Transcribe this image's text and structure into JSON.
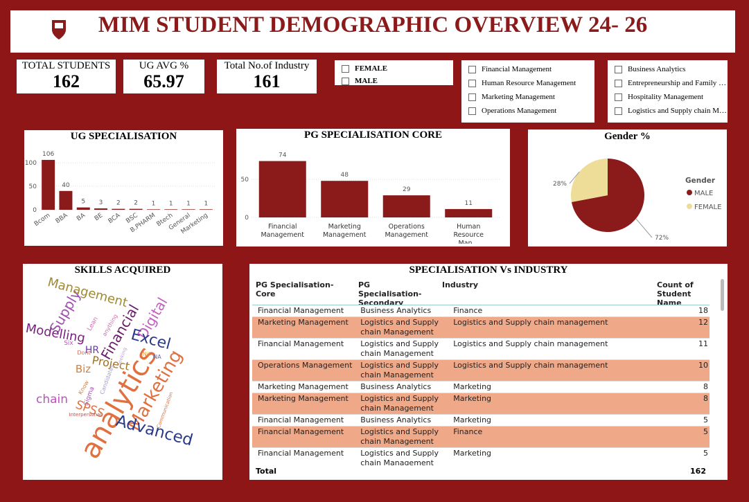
{
  "header": {
    "title": "MIM STUDENT DEMOGRAPHIC OVERVIEW 24- 26"
  },
  "cards": [
    {
      "label": "TOTAL STUDENTS",
      "value": 162
    },
    {
      "label": "UG AVG %",
      "value": 65.97
    },
    {
      "label": "Total No.of Industry",
      "value": 161
    }
  ],
  "slicers": [
    [
      "FEMALE",
      "MALE"
    ],
    [
      "Financial Management",
      "Human Resource Management",
      "Marketing Management",
      "Operations Management"
    ],
    [
      "Business Analytics",
      "Entrepreneurship and Family Bus…",
      "Hospitality Management",
      "Logistics and Supply chain Mana…"
    ]
  ],
  "chart_data": [
    {
      "type": "bar",
      "title": "UG SPECIALISATION",
      "categories": [
        "Bcom",
        "BBA",
        "BA",
        "BE",
        "BCA",
        "BSC",
        "B.PHARM",
        "Btech",
        "General",
        "Marketing"
      ],
      "values": [
        106,
        40,
        5,
        3,
        2,
        2,
        1,
        1,
        1,
        1
      ],
      "color": "#8b1a1a",
      "ylim": [
        0,
        125
      ],
      "yticks": [
        0,
        50,
        100
      ],
      "rotate_labels": true
    },
    {
      "type": "bar",
      "title": "PG SPECIALISATION CORE",
      "categories": [
        "Financial Management",
        "Marketing Management",
        "Operations Management",
        "Human Resource Man…"
      ],
      "values": [
        74,
        48,
        29,
        11
      ],
      "color": "#8b1a1a",
      "ylim": [
        0,
        80
      ],
      "yticks": [
        0,
        50
      ],
      "rotate_labels": false
    },
    {
      "type": "pie",
      "title": "Gender %",
      "legend_title": "Gender",
      "categories": [
        "MALE",
        "FEMALE"
      ],
      "values": [
        72,
        28
      ],
      "value_labels": [
        "72%",
        "28%"
      ],
      "colors": [
        "#8b1a1a",
        "#eedd99"
      ]
    }
  ],
  "wordcloud": {
    "title": "SKILLS ACQUIRED",
    "words": [
      "Supply",
      "Management",
      "Digital",
      "Modelling",
      "Financial",
      "Excel",
      "HR",
      "Project",
      "Biz",
      "Marketing",
      "analytics",
      "chain",
      "SPSS",
      "Advanced",
      "Lean",
      "anything",
      "Six",
      "Dont",
      "Nil",
      "NA",
      "Sigma",
      "Know",
      "Candidates",
      "Communication",
      "Interpersonal",
      "Seeking"
    ]
  },
  "table": {
    "title": "SPECIALISATION Vs INDUSTRY",
    "columns": [
      "PG Specialisation-Core",
      "PG Specialisation-Secondary",
      "Industry",
      "Count of Student Name"
    ],
    "rows": [
      [
        "Financial Management",
        "Business Analytics",
        "Finance",
        18
      ],
      [
        "Marketing Management",
        "Logistics and Supply chain Management",
        "Logistics and Supply chain management",
        12
      ],
      [
        "Financial Management",
        "Logistics and Supply chain Management",
        "Logistics and Supply chain management",
        11
      ],
      [
        "Operations Management",
        "Logistics and Supply chain Management",
        "Logistics and Supply chain management",
        10
      ],
      [
        "Marketing Management",
        "Business Analytics",
        "Marketing",
        8
      ],
      [
        "Marketing Management",
        "Logistics and Supply chain Management",
        "Marketing",
        8
      ],
      [
        "Financial Management",
        "Business Analytics",
        "Marketing",
        5
      ],
      [
        "Financial Management",
        "Logistics and Supply chain Management",
        "Finance",
        5
      ],
      [
        "Financial Management",
        "Logistics and Supply chain Management",
        "Marketing",
        5
      ]
    ],
    "total_label": "Total",
    "total": 162
  }
}
